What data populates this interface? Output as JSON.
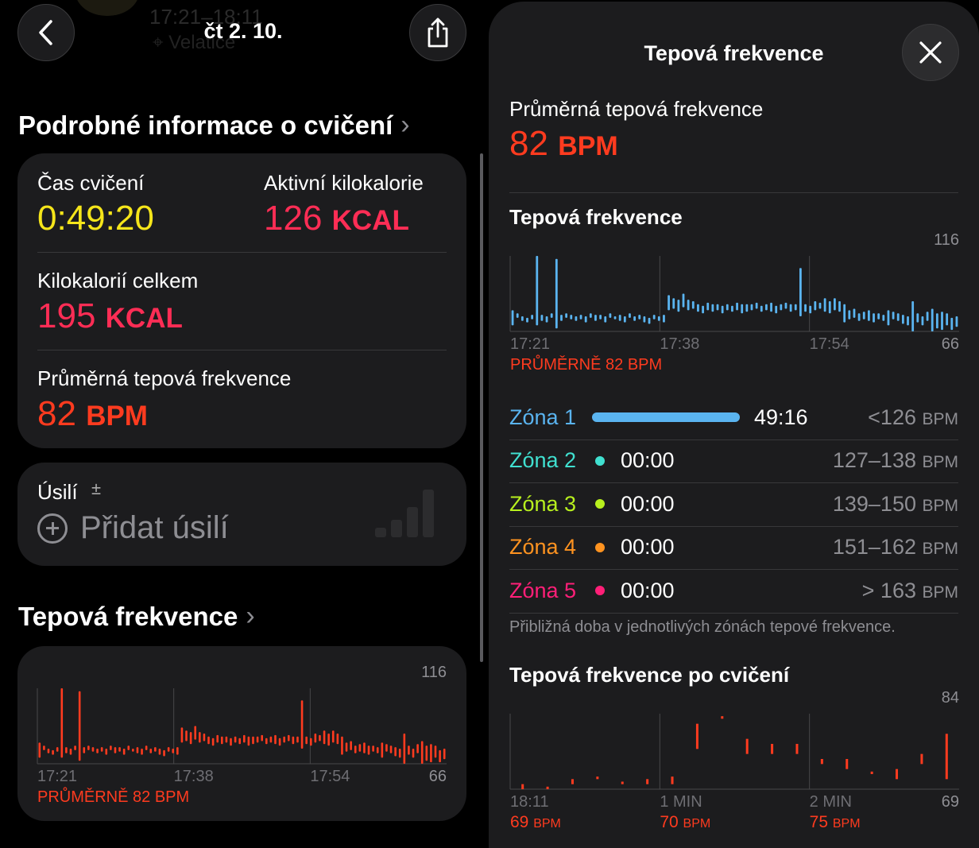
{
  "header": {
    "date": "čt 2. 10."
  },
  "details": {
    "section_title": "Podrobné informace o cvičení",
    "workout_time": {
      "label": "Čas cvičení",
      "value": "0:49:20"
    },
    "active_kcal": {
      "label": "Aktivní kilokalorie",
      "value": "126",
      "unit": "KCAL"
    },
    "total_kcal": {
      "label": "Kilokalorií celkem",
      "value": "195",
      "unit": "KCAL"
    },
    "avg_hr": {
      "label": "Průměrná tepová frekvence",
      "value": "82",
      "unit": "BPM"
    }
  },
  "effort": {
    "label": "Úsilí",
    "pm": "±",
    "add_label": "Přidat úsilí"
  },
  "hr_section": {
    "title": "Tepová frekvence",
    "max": "116",
    "min": "66",
    "times": [
      "17:21",
      "17:38",
      "17:54"
    ],
    "avg_label": "PRŮMĚRNĚ 82 BPM"
  },
  "sheet": {
    "title": "Tepová frekvence",
    "avg_label": "Průměrná tepová frekvence",
    "avg_value": "82",
    "avg_unit": "BPM",
    "chart_title": "Tepová frekvence",
    "zones": [
      {
        "name": "Zóna 1",
        "time": "49:16",
        "range": "<126",
        "unit": "BPM",
        "color": "#5ab4f0",
        "fraction": 1.0
      },
      {
        "name": "Zóna 2",
        "time": "00:00",
        "range": "127–138",
        "unit": "BPM",
        "color": "#40e0d0"
      },
      {
        "name": "Zóna 3",
        "time": "00:00",
        "range": "139–150",
        "unit": "BPM",
        "color": "#b8f01e"
      },
      {
        "name": "Zóna 4",
        "time": "00:00",
        "range": "151–162",
        "unit": "BPM",
        "color": "#ff9320"
      },
      {
        "name": "Zóna 5",
        "time": "00:00",
        "range": "> 163",
        "unit": "BPM",
        "color": "#ff1f78"
      }
    ],
    "zone_note": "Přibližná doba v jednotlivých zónách tepové frekvence.",
    "recovery": {
      "title": "Tepová frekvence po cvičení",
      "max": "84",
      "min": "69",
      "times": [
        "18:11",
        "1 MIN",
        "2 MIN"
      ],
      "values": [
        {
          "num": "69",
          "unit": "BPM"
        },
        {
          "num": "70",
          "unit": "BPM"
        },
        {
          "num": "75",
          "unit": "BPM"
        }
      ]
    }
  },
  "chart_data": [
    {
      "type": "bar",
      "subtype": "range",
      "series": [
        {
          "name": "",
          "color": "#ff3b1f"
        }
      ],
      "xlabel": "",
      "ylabel": "",
      "x_ticks": [
        "17:21",
        "17:38",
        "17:54"
      ],
      "ylim": [
        66,
        116
      ],
      "grid": true,
      "ranges": [
        [
          70,
          80
        ],
        [
          75,
          78
        ],
        [
          73,
          76
        ],
        [
          72,
          75
        ],
        [
          74,
          77
        ],
        [
          70,
          116
        ],
        [
          73,
          77
        ],
        [
          72,
          76
        ],
        [
          75,
          78
        ],
        [
          68,
          114
        ],
        [
          73,
          77
        ],
        [
          75,
          78
        ],
        [
          74,
          77
        ],
        [
          73,
          76
        ],
        [
          74,
          77
        ],
        [
          72,
          76
        ],
        [
          75,
          78
        ],
        [
          73,
          77
        ],
        [
          74,
          77
        ],
        [
          72,
          76
        ],
        [
          75,
          78
        ],
        [
          74,
          76
        ],
        [
          73,
          77
        ],
        [
          72,
          76
        ],
        [
          75,
          78
        ],
        [
          73,
          76
        ],
        [
          74,
          77
        ],
        [
          72,
          76
        ],
        [
          71,
          75
        ],
        [
          74,
          77
        ],
        [
          73,
          76
        ],
        [
          72,
          77
        ],
        [
          80,
          90
        ],
        [
          81,
          88
        ],
        [
          79,
          87
        ],
        [
          82,
          91
        ],
        [
          80,
          87
        ],
        [
          81,
          86
        ],
        [
          79,
          84
        ],
        [
          78,
          83
        ],
        [
          80,
          85
        ],
        [
          79,
          84
        ],
        [
          80,
          84
        ],
        [
          78,
          83
        ],
        [
          80,
          84
        ],
        [
          79,
          83
        ],
        [
          80,
          85
        ],
        [
          78,
          84
        ],
        [
          79,
          84
        ],
        [
          80,
          84
        ],
        [
          81,
          85
        ],
        [
          79,
          83
        ],
        [
          80,
          84
        ],
        [
          79,
          85
        ],
        [
          78,
          83
        ],
        [
          80,
          84
        ],
        [
          81,
          85
        ],
        [
          79,
          84
        ],
        [
          80,
          84
        ],
        [
          76,
          108
        ],
        [
          79,
          84
        ],
        [
          78,
          83
        ],
        [
          80,
          86
        ],
        [
          81,
          85
        ],
        [
          79,
          88
        ],
        [
          78,
          86
        ],
        [
          80,
          88
        ],
        [
          79,
          86
        ],
        [
          72,
          84
        ],
        [
          74,
          80
        ],
        [
          75,
          81
        ],
        [
          73,
          78
        ],
        [
          74,
          79
        ],
        [
          73,
          80
        ],
        [
          72,
          78
        ],
        [
          74,
          78
        ],
        [
          73,
          77
        ],
        [
          70,
          80
        ],
        [
          74,
          79
        ],
        [
          73,
          78
        ],
        [
          71,
          77
        ],
        [
          70,
          76
        ],
        [
          66,
          86
        ],
        [
          72,
          78
        ],
        [
          70,
          76
        ],
        [
          73,
          79
        ],
        [
          66,
          81
        ],
        [
          68,
          78
        ],
        [
          67,
          79
        ],
        [
          70,
          78
        ],
        [
          67,
          75
        ],
        [
          69,
          76
        ]
      ],
      "max_label": "116",
      "min_label": "66",
      "avg_label": "PRŮMĚRNĚ 82 BPM"
    },
    {
      "type": "bar",
      "subtype": "range",
      "series": [
        {
          "name": "",
          "color": "#5ab4f0"
        }
      ],
      "xlabel": "",
      "ylabel": "",
      "x_ticks": [
        "17:21",
        "17:38",
        "17:54"
      ],
      "ylim": [
        66,
        116
      ],
      "grid": true,
      "max_label": "116",
      "min_label": "66",
      "avg_label": "PRŮMĚRNĚ 82 BPM",
      "ranges": "same as chart 1"
    },
    {
      "type": "bar",
      "subtype": "range",
      "series": [
        {
          "name": "",
          "color": "#ff3b1f"
        }
      ],
      "xlabel": "",
      "ylabel": "",
      "x_ticks": [
        "18:11",
        "1 MIN",
        "2 MIN"
      ],
      "ylim": [
        69,
        84
      ],
      "grid": true,
      "ranges": [
        [
          69,
          70
        ],
        [
          69,
          69.5
        ],
        [
          70,
          71
        ],
        [
          71,
          71.5
        ],
        [
          70,
          70.5
        ],
        [
          70,
          71
        ],
        [
          70,
          71.5
        ],
        [
          77,
          82
        ],
        [
          83,
          83.5
        ],
        [
          76,
          79
        ],
        [
          76,
          78
        ],
        [
          76,
          78
        ],
        [
          74,
          75
        ],
        [
          73,
          75
        ],
        [
          72,
          72.5
        ],
        [
          71,
          73
        ],
        [
          74,
          76
        ],
        [
          71,
          80
        ]
      ],
      "max_label": "84",
      "min_label": "69"
    }
  ]
}
